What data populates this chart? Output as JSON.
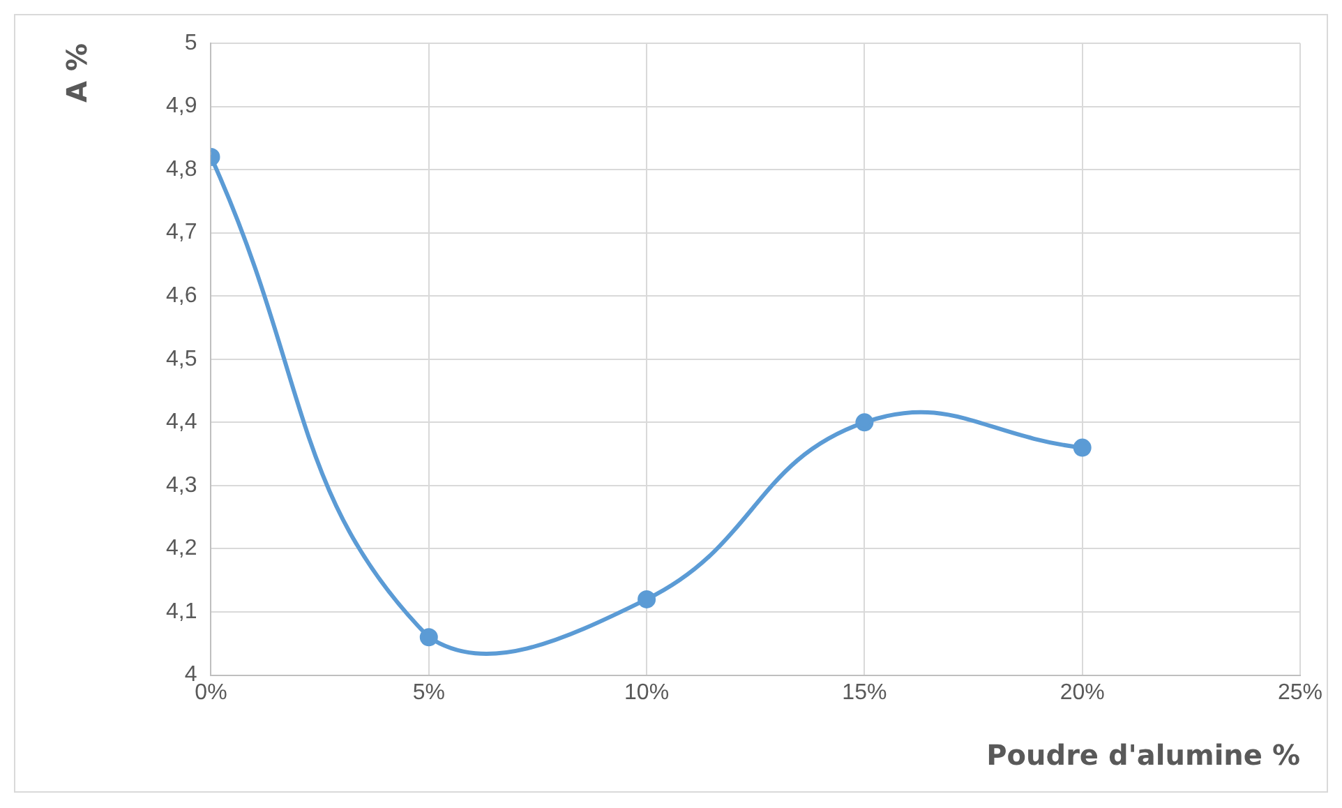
{
  "chart_data": {
    "type": "line",
    "xlabel": "Poudre d'alumine %",
    "ylabel": "A %",
    "x": [
      0,
      5,
      10,
      15,
      20
    ],
    "series": [
      {
        "color": "#5b9bd5",
        "values": [
          4.82,
          4.06,
          4.12,
          4.4,
          4.36
        ]
      }
    ],
    "xlim": [
      0,
      25
    ],
    "xticks": [
      {
        "value": 0,
        "label": "0%"
      },
      {
        "value": 5,
        "label": "5%"
      },
      {
        "value": 10,
        "label": "10%"
      },
      {
        "value": 15,
        "label": "15%"
      },
      {
        "value": 20,
        "label": "20%"
      },
      {
        "value": 25,
        "label": "25%"
      }
    ],
    "ylim": [
      4,
      5
    ],
    "yticks": [
      4,
      {
        "value": 4.1,
        "label": "4,1"
      },
      {
        "value": 4.2,
        "label": "4,2"
      },
      {
        "value": 4.3,
        "label": "4,3"
      },
      {
        "value": 4.4,
        "label": "4,4"
      },
      {
        "value": 4.5,
        "label": "4,5"
      },
      {
        "value": 4.6,
        "label": "4,6"
      },
      {
        "value": 4.7,
        "label": "4,7"
      },
      {
        "value": 4.8,
        "label": "4,8"
      },
      {
        "value": 4.9,
        "label": "4,9"
      },
      5
    ],
    "grid": true,
    "legend": false,
    "marker": "circle",
    "line_style": "solid"
  }
}
